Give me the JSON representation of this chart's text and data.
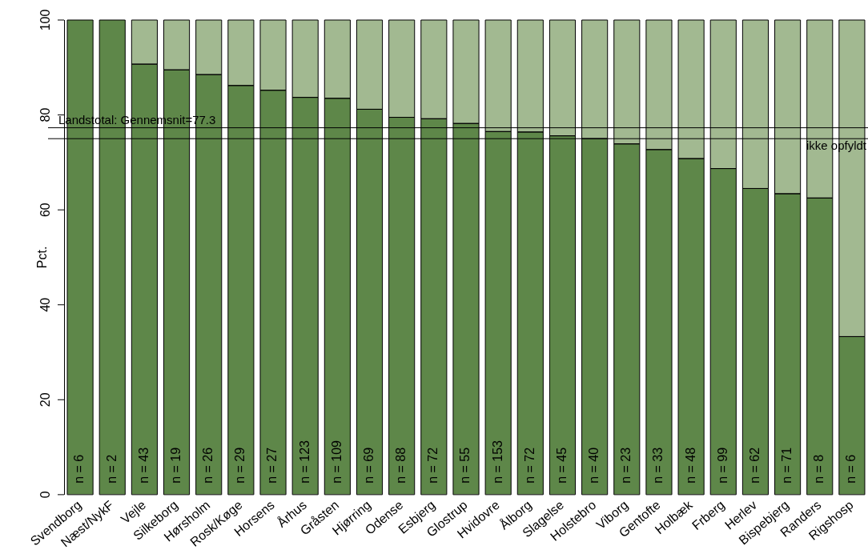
{
  "chart_data": {
    "type": "bar",
    "stacked": true,
    "ylabel": "Pct.",
    "ylim": [
      0,
      100
    ],
    "yticks": [
      0,
      20,
      40,
      60,
      80,
      100
    ],
    "grid": false,
    "legend": false,
    "categories": [
      "Svendborg",
      "Næst/NykF",
      "Vejle",
      "Silkeborg",
      "Hørsholm",
      "Rosk/Køge",
      "Horsens",
      "Århus",
      "Gråsten",
      "Hjørring",
      "Odense",
      "Esbjerg",
      "Glostrup",
      "Hvidovre",
      "Ålborg",
      "Slagelse",
      "Holstebro",
      "Viborg",
      "Gentofte",
      "Holbæk",
      "Frberg",
      "Herlev",
      "Bispebjerg",
      "Randers",
      "Rigshosp"
    ],
    "series": [
      {
        "color": "#5e8749",
        "values": [
          100,
          100,
          90.7,
          89.5,
          88.5,
          86.2,
          85.2,
          83.7,
          83.5,
          81.2,
          79.5,
          79.2,
          78.2,
          76.5,
          76.4,
          75.6,
          75,
          73.9,
          72.7,
          70.8,
          68.7,
          64.5,
          63.4,
          62.5,
          33.3
        ]
      },
      {
        "color": "#a2b991",
        "values": [
          0,
          0,
          9.3,
          10.5,
          11.5,
          13.8,
          14.8,
          16.3,
          16.5,
          18.8,
          20.5,
          20.8,
          21.8,
          23.5,
          23.6,
          24.4,
          25,
          26.1,
          27.3,
          29.2,
          31.3,
          35.5,
          36.6,
          37.5,
          66.7
        ]
      }
    ],
    "ref_lines": [
      {
        "axis": "y",
        "value": 77.3,
        "label": "Landstotal: Gennemsnit=77.3"
      },
      {
        "axis": "y",
        "value": 75,
        "label": "ikke opfyldt"
      }
    ],
    "annotations": [
      "n = 6",
      "n = 2",
      "n = 43",
      "n = 19",
      "n = 26",
      "n = 29",
      "n = 27",
      "n = 123",
      "n = 109",
      "n = 69",
      "n = 88",
      "n = 72",
      "n = 55",
      "n = 153",
      "n = 72",
      "n = 45",
      "n = 40",
      "n = 23",
      "n = 33",
      "n = 48",
      "n = 99",
      "n = 62",
      "n = 71",
      "n = 8",
      "n = 6"
    ]
  }
}
